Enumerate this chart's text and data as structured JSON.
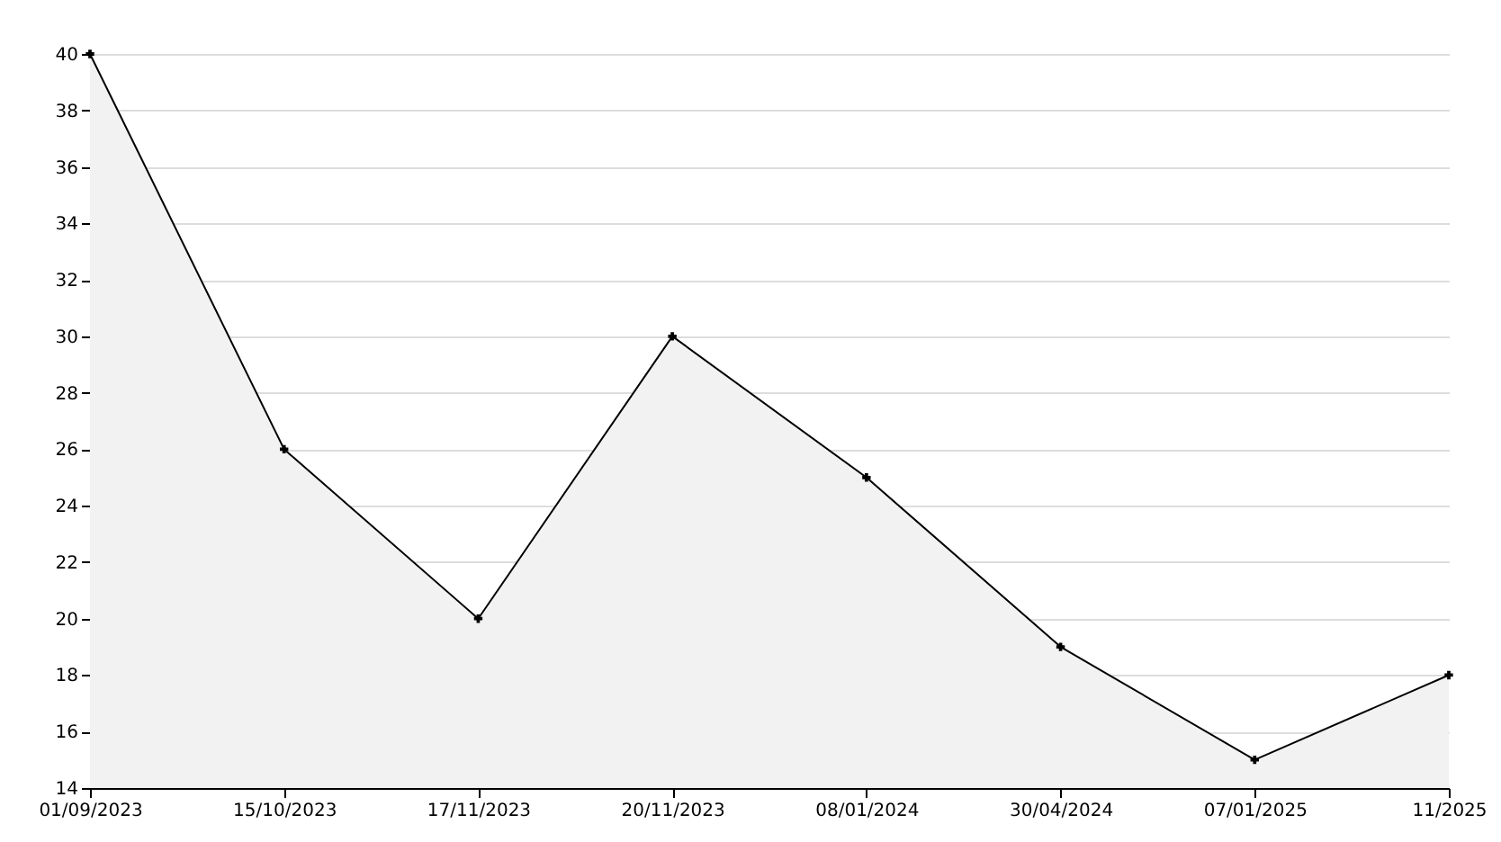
{
  "chart_data": {
    "type": "area",
    "categories": [
      "01/09/2023",
      "15/10/2023",
      "17/11/2023",
      "20/11/2023",
      "08/01/2024",
      "30/04/2024",
      "07/01/2025",
      "11/2025"
    ],
    "series": [
      {
        "color": "#000000",
        "values": [
          40,
          26,
          20,
          30,
          25,
          19,
          15,
          18
        ]
      }
    ],
    "ylim": [
      14,
      40
    ],
    "yticks": [
      14,
      16,
      18,
      20,
      22,
      24,
      26,
      28,
      30,
      32,
      34,
      36,
      38,
      40
    ],
    "grid": "y",
    "marker": "cross"
  }
}
